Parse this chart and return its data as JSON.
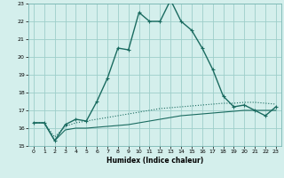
{
  "title": "",
  "xlabel": "Humidex (Indice chaleur)",
  "background_color": "#d4efec",
  "grid_color": "#9ececa",
  "line_color": "#1a6b60",
  "xlim": [
    -0.5,
    23.5
  ],
  "ylim": [
    15,
    23
  ],
  "xticks": [
    0,
    1,
    2,
    3,
    4,
    5,
    6,
    7,
    8,
    9,
    10,
    11,
    12,
    13,
    14,
    15,
    16,
    17,
    18,
    19,
    20,
    21,
    22,
    23
  ],
  "yticks": [
    15,
    16,
    17,
    18,
    19,
    20,
    21,
    22,
    23
  ],
  "hours": [
    0,
    1,
    2,
    3,
    4,
    5,
    6,
    7,
    8,
    9,
    10,
    11,
    12,
    13,
    14,
    15,
    16,
    17,
    18,
    19,
    20,
    21,
    22,
    23
  ],
  "line1": [
    16.3,
    16.3,
    15.3,
    16.2,
    16.5,
    16.4,
    17.5,
    18.8,
    20.5,
    20.4,
    22.5,
    22.0,
    22.0,
    23.2,
    22.0,
    21.5,
    20.5,
    19.3,
    17.8,
    17.2,
    17.3,
    17.0,
    16.7,
    17.2
  ],
  "line2": [
    16.3,
    16.3,
    15.5,
    16.1,
    16.3,
    16.4,
    16.5,
    16.6,
    16.7,
    16.8,
    16.9,
    17.0,
    17.1,
    17.15,
    17.2,
    17.25,
    17.3,
    17.35,
    17.4,
    17.4,
    17.45,
    17.45,
    17.4,
    17.35
  ],
  "line3": [
    16.3,
    16.3,
    15.3,
    15.9,
    16.0,
    16.0,
    16.05,
    16.1,
    16.15,
    16.2,
    16.3,
    16.4,
    16.5,
    16.6,
    16.7,
    16.75,
    16.8,
    16.85,
    16.9,
    16.95,
    17.0,
    17.0,
    17.0,
    17.0
  ]
}
